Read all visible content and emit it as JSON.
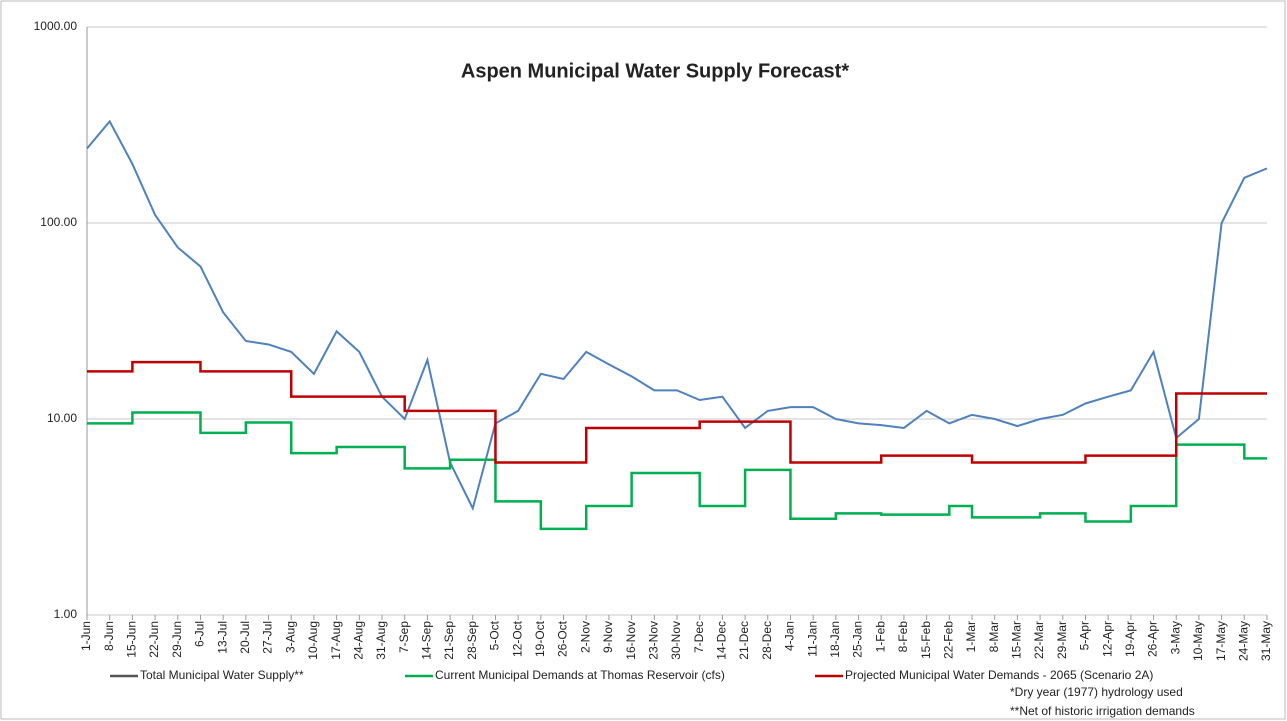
{
  "chart_data": {
    "type": "line",
    "title": "Aspen Municipal Water Supply Forecast*",
    "notes": [
      "*Dry year (1977) hydrology used",
      "**Net of historic irrigation demands"
    ],
    "log_scale": true,
    "grid": true,
    "legend": "bottom",
    "ylim": [
      1,
      1000
    ],
    "yticks": [
      {
        "value": 1,
        "label": "1.00"
      },
      {
        "value": 10,
        "label": "10.00"
      },
      {
        "value": 100,
        "label": "100.00"
      },
      {
        "value": 1000,
        "label": "1000.00"
      }
    ],
    "categories": [
      "1-Jun",
      "8-Jun",
      "15-Jun",
      "22-Jun",
      "29-Jun",
      "6-Jul",
      "13-Jul",
      "20-Jul",
      "27-Jul",
      "3-Aug",
      "10-Aug",
      "17-Aug",
      "24-Aug",
      "31-Aug",
      "7-Sep",
      "14-Sep",
      "21-Sep",
      "28-Sep",
      "5-Oct",
      "12-Oct",
      "19-Oct",
      "26-Oct",
      "2-Nov",
      "9-Nov",
      "16-Nov",
      "23-Nov",
      "30-Nov",
      "7-Dec",
      "14-Dec",
      "21-Dec",
      "28-Dec",
      "4-Jan",
      "11-Jan",
      "18-Jan",
      "25-Jan",
      "1-Feb",
      "8-Feb",
      "15-Feb",
      "22-Feb",
      "1-Mar",
      "8-Mar",
      "15-Mar",
      "22-Mar",
      "29-Mar",
      "5-Apr",
      "12-Apr",
      "19-Apr",
      "26-Apr",
      "3-May",
      "10-May",
      "17-May",
      "24-May",
      "31-May"
    ],
    "series": [
      {
        "name": "Total Municipal Water Supply**",
        "color": "#4f81bd",
        "legend_color": "#555555",
        "values": [
          240,
          330,
          200,
          110,
          75,
          60,
          35,
          25,
          24,
          22,
          17,
          28,
          22,
          13,
          10,
          20,
          6,
          3.5,
          9.5,
          11,
          17,
          16,
          22,
          19,
          16.5,
          14,
          14,
          12.5,
          13,
          9,
          11,
          11.5,
          11.5,
          10,
          9.5,
          9.3,
          9,
          11,
          9.5,
          10.5,
          10,
          9.2,
          10,
          10.5,
          12,
          13,
          14,
          22,
          8,
          10,
          100,
          170,
          190
        ]
      },
      {
        "name": "Current Municipal Demands at Thomas Reservoir (cfs)",
        "color": "#00b050",
        "step": true,
        "values": [
          9.5,
          9.5,
          10.8,
          10.8,
          10.8,
          8.5,
          8.5,
          9.6,
          9.6,
          6.7,
          6.7,
          7.2,
          7.2,
          7.2,
          5.6,
          5.6,
          6.2,
          6.2,
          3.8,
          3.8,
          2.75,
          2.75,
          3.6,
          3.6,
          5.3,
          5.3,
          5.3,
          3.6,
          3.6,
          5.5,
          5.5,
          3.1,
          3.1,
          3.3,
          3.3,
          3.25,
          3.25,
          3.25,
          3.6,
          3.15,
          3.15,
          3.15,
          3.3,
          3.3,
          3.0,
          3.0,
          3.6,
          3.6,
          7.4,
          7.4,
          7.4,
          6.3,
          6.3
        ]
      },
      {
        "name": "Projected Municipal Water Demands - 2065 (Scenario 2A)",
        "color": "#c00000",
        "step": true,
        "values": [
          17.5,
          17.5,
          19.5,
          19.5,
          19.5,
          17.5,
          17.5,
          17.5,
          17.5,
          13,
          13,
          13,
          13,
          13,
          11,
          11,
          11,
          11,
          6,
          6,
          6,
          6,
          9,
          9,
          9,
          9,
          9,
          9.7,
          9.7,
          9.7,
          9.7,
          6,
          6,
          6,
          6,
          6.5,
          6.5,
          6.5,
          6.5,
          6,
          6,
          6,
          6,
          6,
          6.5,
          6.5,
          6.5,
          6.5,
          13.5,
          13.5,
          13.5,
          13.5,
          13.5
        ]
      }
    ]
  }
}
